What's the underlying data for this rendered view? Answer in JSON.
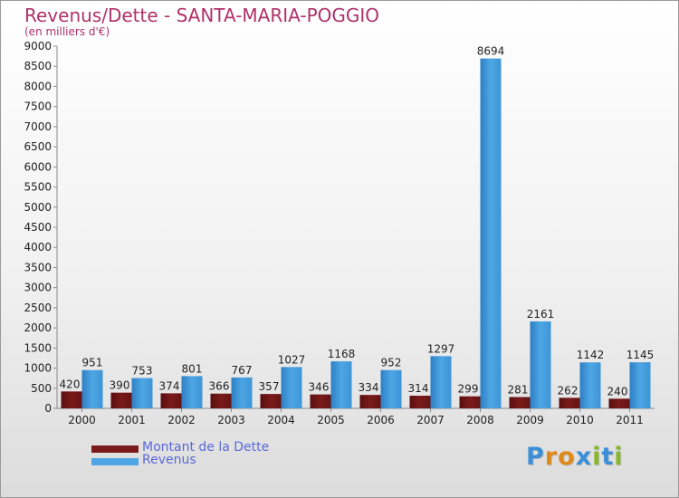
{
  "header": {
    "title": "Revenus/Dette - SANTA-MARIA-POGGIO",
    "subtitle": "(en milliers d'€)"
  },
  "legend": {
    "debt_label": "Montant de la Dette",
    "revenue_label": "Revenus"
  },
  "brand": {
    "logo_letters": [
      "P",
      "r",
      "o",
      "x",
      "i",
      "t",
      "i"
    ]
  },
  "colors": {
    "debt": "#7a1a1a",
    "revenue": "#4ea6e4",
    "title": "#b0316a",
    "legend_text": "#5a6ad8",
    "logo": [
      "#3a8fd8",
      "#e08a1a",
      "#e08a1a",
      "#3a8fd8",
      "#88b72b",
      "#3a8fd8",
      "#88b72b"
    ]
  },
  "chart_data": {
    "type": "bar",
    "categories": [
      "2000",
      "2001",
      "2002",
      "2003",
      "2004",
      "2005",
      "2006",
      "2007",
      "2008",
      "2009",
      "2010",
      "2011"
    ],
    "series": [
      {
        "name": "Montant de la Dette",
        "values": [
          420,
          390,
          374,
          366,
          357,
          346,
          334,
          314,
          299,
          281,
          262,
          240
        ]
      },
      {
        "name": "Revenus",
        "values": [
          951,
          753,
          801,
          767,
          1027,
          1168,
          952,
          1297,
          8694,
          2161,
          1142,
          1145
        ]
      }
    ],
    "yticks": [
      0,
      500,
      1000,
      1500,
      2000,
      2500,
      3000,
      3500,
      4000,
      4500,
      5000,
      5500,
      6000,
      6500,
      7000,
      7500,
      8000,
      8500,
      9000
    ],
    "ylim": [
      0,
      9000
    ],
    "grid": false,
    "legend_position": "bottom-left"
  }
}
